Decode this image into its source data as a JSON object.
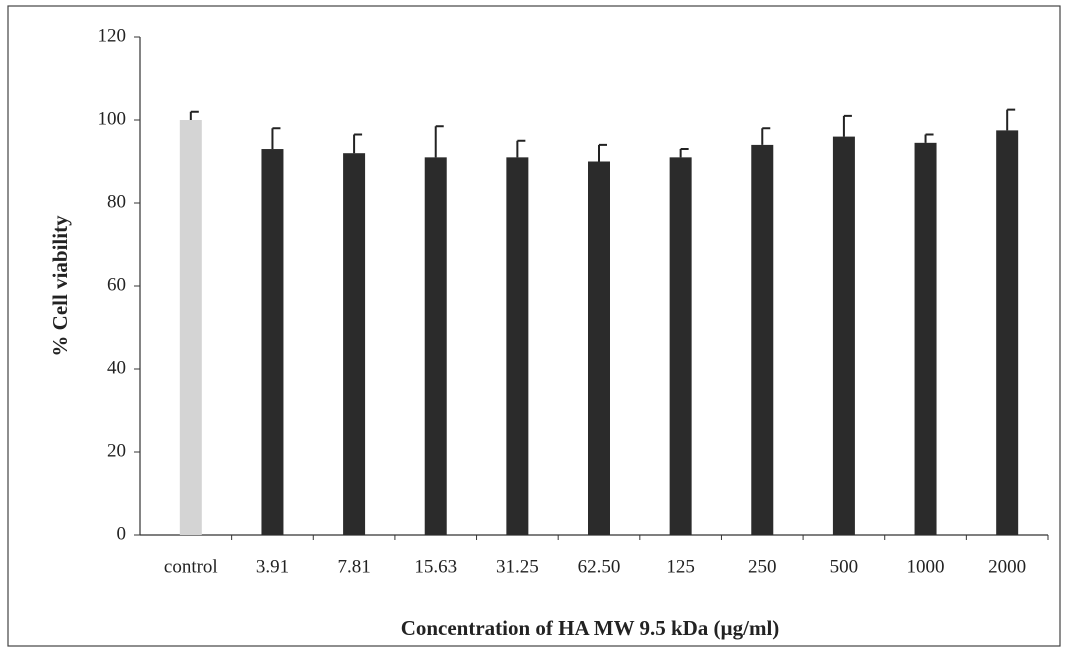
{
  "chart_data": {
    "type": "bar",
    "x_label": "Concentration of HA MW 9.5 kDa (µg/ml)",
    "y_label": "% Cell viability",
    "categories": [
      "control",
      "3.91",
      "7.81",
      "15.63",
      "31.25",
      "62.50",
      "125",
      "250",
      "500",
      "1000",
      "2000"
    ],
    "values": [
      100,
      93,
      92,
      91,
      91,
      90,
      91,
      94,
      96,
      94.5,
      97.5
    ],
    "errors": [
      2,
      5,
      4.5,
      7.5,
      4,
      4,
      2,
      4,
      5,
      2,
      5
    ],
    "colors": [
      "#d4d4d4",
      "#2b2b2b",
      "#2b2b2b",
      "#2b2b2b",
      "#2b2b2b",
      "#2b2b2b",
      "#2b2b2b",
      "#2b2b2b",
      "#2b2b2b",
      "#2b2b2b",
      "#2b2b2b"
    ],
    "ylim": [
      0,
      120
    ],
    "yticks": [
      0,
      20,
      40,
      60,
      80,
      100,
      120
    ],
    "grid": false
  }
}
